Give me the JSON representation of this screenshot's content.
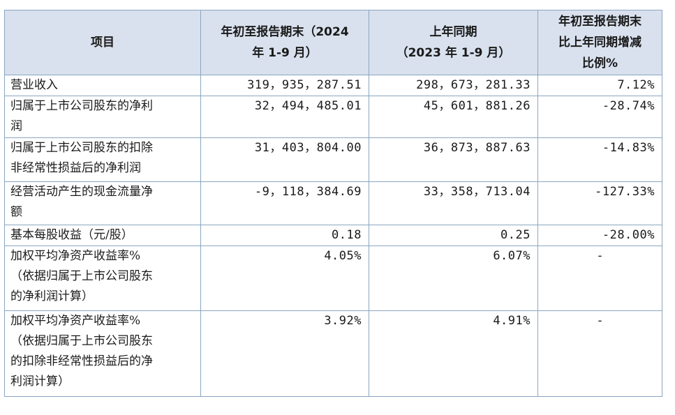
{
  "header": {
    "item": "项目",
    "col_current": [
      "年初至报告期末（2024",
      "年 1-9 月）"
    ],
    "col_prior": [
      "上年同期",
      "（2023 年 1-9 月）"
    ],
    "col_change": [
      "年初至报告期末",
      "比上年同期增减",
      "比例%"
    ]
  },
  "rows": [
    {
      "label": [
        "营业收入"
      ],
      "current": "319，935，287.51",
      "prior": "298，673，281.33",
      "change": "7.12%"
    },
    {
      "label": [
        "归属于上市公司股东的净利",
        "润"
      ],
      "current": "32，494，485.01",
      "prior": "45，601，881.26",
      "change": "-28.74%"
    },
    {
      "label": [
        "归属于上市公司股东的扣除",
        "非经常性损益后的净利润"
      ],
      "current": "31，403，804.00",
      "prior": "36，873，887.63",
      "change": "-14.83%"
    },
    {
      "label": [
        "经营活动产生的现金流量净",
        "额"
      ],
      "current": "-9，118，384.69",
      "prior": "33，358，713.04",
      "change": "-127.33%"
    },
    {
      "label": [
        "基本每股收益（元/股）"
      ],
      "current": "0.18",
      "prior": "0.25",
      "change": "-28.00%"
    },
    {
      "label": [
        "加权平均净资产收益率%",
        "（依据归属于上市公司股东",
        "的净利润计算）"
      ],
      "current": "4.05%",
      "prior": "6.07%",
      "change": "-"
    },
    {
      "label": [
        "加权平均净资产收益率%",
        "（依据归属于上市公司股东",
        "的扣除非经常性损益后的净",
        "利润计算）"
      ],
      "current": "3.92%",
      "prior": "4.91%",
      "change": "-"
    }
  ]
}
